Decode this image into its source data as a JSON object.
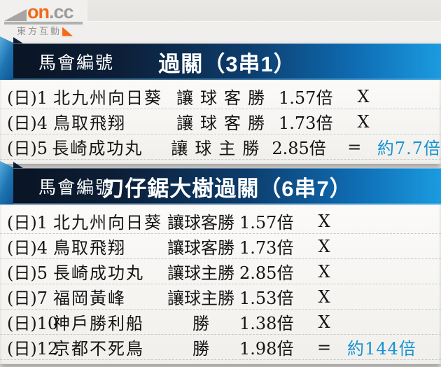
{
  "logo": {
    "brand": "on",
    "brand_suffix": ".cc",
    "subtitle": "東方互動"
  },
  "colors": {
    "accent_result_blue": "#1693d3",
    "band_dark_navy": "#0a1424",
    "band_bright_blue": "#1b9be0",
    "logo_orange": "#f26a1b",
    "logo_grey": "#9b9b9b"
  },
  "tables": [
    {
      "header": {
        "left": "馬會編號",
        "title": "過關（3串1）"
      },
      "rows": [
        {
          "no": "(日)1",
          "team": "北九州向日葵",
          "bet": "讓球客勝",
          "odds": "1.57倍",
          "mark": "X",
          "result": ""
        },
        {
          "no": "(日)4",
          "team": "鳥取飛翔",
          "bet": "讓球客勝",
          "odds": "1.73倍",
          "mark": "X",
          "result": ""
        },
        {
          "no": "(日)5",
          "team": "長崎成功丸",
          "bet": "讓球主勝",
          "odds": "2.85倍",
          "mark": "=",
          "result": "約7.7倍"
        }
      ]
    },
    {
      "header": {
        "left": "馬會編號",
        "title": "刀仔鋸大樹過關（6串7）"
      },
      "rows": [
        {
          "no": "(日)1",
          "team": "北九州向日葵",
          "bet": "讓球客勝",
          "odds": "1.57倍",
          "mark": "X",
          "result": ""
        },
        {
          "no": "(日)4",
          "team": "鳥取飛翔",
          "bet": "讓球客勝",
          "odds": "1.73倍",
          "mark": "X",
          "result": ""
        },
        {
          "no": "(日)5",
          "team": "長崎成功丸",
          "bet": "讓球主勝",
          "odds": "2.85倍",
          "mark": "X",
          "result": ""
        },
        {
          "no": "(日)7",
          "team": "福岡黃峰",
          "bet": "讓球主勝",
          "odds": "1.53倍",
          "mark": "X",
          "result": ""
        },
        {
          "no": "(日)10",
          "team": "神戶勝利船",
          "bet": "勝",
          "odds": "1.38倍",
          "mark": "X",
          "result": ""
        },
        {
          "no": "(日)12",
          "team": "京都不死鳥",
          "bet": "勝",
          "odds": "1.98倍",
          "mark": "=",
          "result": "約144倍"
        }
      ]
    }
  ]
}
